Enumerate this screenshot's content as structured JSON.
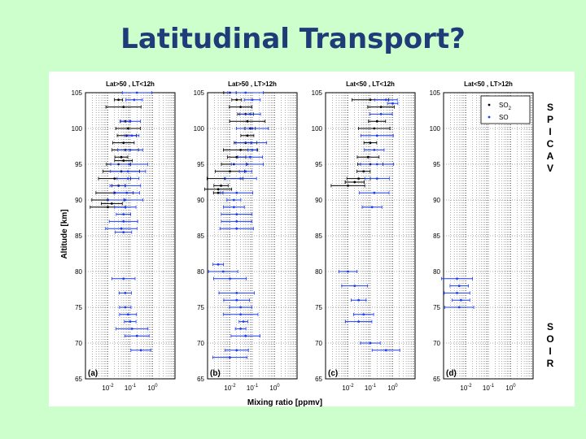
{
  "slide": {
    "title": "Latitudinal Transport?"
  },
  "figure": {
    "ylabel": "Altitude [km]",
    "xlabel": "Mixing ratio [ppmv]",
    "y_ticks": [
      "105",
      "100",
      "95",
      "90",
      "85",
      "80",
      "75",
      "70",
      "65"
    ],
    "x_ticks": [
      "10^-2",
      "10^-1",
      "10^0"
    ],
    "legend": {
      "so2": "SO",
      "so2_sub": "2",
      "so": "SO"
    },
    "instrument_spicav": [
      "S",
      "P",
      "I",
      "C",
      "A",
      "V"
    ],
    "instrument_soir": [
      "S",
      "O",
      "I",
      "R"
    ],
    "colors": {
      "so2": "#000000",
      "so": "#1a3cff",
      "grid": "#444444"
    }
  },
  "chart_data": [
    {
      "type": "scatter",
      "panel": "(a)",
      "title": "Lat>50 , LT<12h",
      "xlabel": "",
      "ylabel": "Altitude [km]",
      "xscale": "log",
      "xlim": [
        0.001,
        10
      ],
      "ylim": [
        65,
        105
      ],
      "series": [
        {
          "values": [
            [
              0.03,
              104
            ],
            [
              0.05,
              103
            ],
            [
              0.06,
              101
            ],
            [
              0.08,
              100
            ],
            [
              0.07,
              99
            ],
            [
              0.05,
              98
            ],
            [
              0.06,
              97
            ],
            [
              0.04,
              96
            ],
            [
              0.05,
              95.5
            ],
            [
              0.03,
              95
            ],
            [
              0.04,
              94
            ],
            [
              0.02,
              93
            ],
            [
              0.03,
              92
            ],
            [
              0.02,
              91
            ],
            [
              0.01,
              90
            ],
            [
              0.015,
              89.5
            ],
            [
              0.01,
              89
            ]
          ]
        },
        {
          "values": [
            [
              0.2,
              105
            ],
            [
              0.15,
              104
            ],
            [
              0.1,
              101
            ],
            [
              0.12,
              99
            ],
            [
              0.1,
              97
            ],
            [
              0.09,
              95
            ],
            [
              0.08,
              94
            ],
            [
              0.08,
              93
            ],
            [
              0.06,
              92
            ],
            [
              0.07,
              91
            ],
            [
              0.06,
              90
            ],
            [
              0.06,
              89
            ],
            [
              0.05,
              88
            ],
            [
              0.05,
              87
            ],
            [
              0.04,
              86
            ],
            [
              0.05,
              85.5
            ],
            [
              0.05,
              79
            ],
            [
              0.06,
              77
            ],
            [
              0.06,
              75
            ],
            [
              0.08,
              74
            ],
            [
              0.1,
              73
            ],
            [
              0.12,
              72
            ],
            [
              0.2,
              71
            ],
            [
              0.3,
              69
            ]
          ]
        }
      ]
    },
    {
      "type": "scatter",
      "panel": "(b)",
      "title": "Lat>50 , LT>12h",
      "xscale": "log",
      "xlim": [
        0.001,
        10
      ],
      "ylim": [
        65,
        105
      ],
      "series": [
        {
          "values": [
            [
              0.01,
              105
            ],
            [
              0.02,
              104
            ],
            [
              0.03,
              103
            ],
            [
              0.05,
              102
            ],
            [
              0.06,
              101
            ],
            [
              0.08,
              100
            ],
            [
              0.06,
              99
            ],
            [
              0.05,
              98
            ],
            [
              0.03,
              97
            ],
            [
              0.02,
              96
            ],
            [
              0.015,
              95
            ],
            [
              0.01,
              94
            ],
            [
              0.006,
              93
            ],
            [
              0.004,
              92
            ],
            [
              0.003,
              91.5
            ],
            [
              0.003,
              91
            ]
          ]
        },
        {
          "values": [
            [
              0.05,
              105
            ],
            [
              0.1,
              104
            ],
            [
              0.08,
              102
            ],
            [
              0.1,
              100
            ],
            [
              0.09,
              98
            ],
            [
              0.1,
              97
            ],
            [
              0.08,
              96
            ],
            [
              0.06,
              95
            ],
            [
              0.05,
              94
            ],
            [
              0.03,
              93
            ],
            [
              0.02,
              91
            ],
            [
              0.015,
              90
            ],
            [
              0.015,
              89
            ],
            [
              0.02,
              88
            ],
            [
              0.02,
              87
            ],
            [
              0.02,
              86
            ],
            [
              0.003,
              81
            ],
            [
              0.005,
              80
            ],
            [
              0.01,
              79
            ],
            [
              0.02,
              77
            ],
            [
              0.02,
              76
            ],
            [
              0.03,
              75
            ],
            [
              0.03,
              74
            ],
            [
              0.04,
              73
            ],
            [
              0.03,
              72
            ],
            [
              0.05,
              71
            ],
            [
              0.02,
              69
            ],
            [
              0.01,
              68
            ]
          ]
        }
      ]
    },
    {
      "type": "scatter",
      "panel": "(c)",
      "title": "Lat<50 , LT<12h",
      "xscale": "log",
      "xlim": [
        0.001,
        10
      ],
      "ylim": [
        65,
        105
      ],
      "series": [
        {
          "values": [
            [
              0.1,
              104
            ],
            [
              0.3,
              103
            ],
            [
              0.2,
              101
            ],
            [
              0.15,
              100
            ],
            [
              0.1,
              98
            ],
            [
              0.08,
              96
            ],
            [
              0.1,
              95
            ],
            [
              0.05,
              94
            ],
            [
              0.03,
              93
            ],
            [
              0.02,
              92.5
            ],
            [
              0.01,
              92
            ]
          ]
        },
        {
          "values": [
            [
              0.5,
              104
            ],
            [
              1,
              103.5
            ],
            [
              0.3,
              102
            ],
            [
              0.2,
              99
            ],
            [
              0.15,
              97
            ],
            [
              0.2,
              95
            ],
            [
              0.2,
              93
            ],
            [
              0.15,
              91
            ],
            [
              0.12,
              89
            ],
            [
              0.01,
              80
            ],
            [
              0.02,
              78
            ],
            [
              0.03,
              76
            ],
            [
              0.05,
              74
            ],
            [
              0.03,
              73
            ],
            [
              0.1,
              70
            ],
            [
              0.5,
              69
            ]
          ]
        }
      ]
    },
    {
      "type": "scatter",
      "panel": "(d)",
      "title": "Lat<50 , LT>12h",
      "xscale": "log",
      "xlim": [
        0.001,
        10
      ],
      "ylim": [
        65,
        105
      ],
      "series": [
        {
          "values": []
        },
        {
          "values": [
            [
              0.004,
              79
            ],
            [
              0.005,
              78
            ],
            [
              0.004,
              77
            ],
            [
              0.006,
              76
            ],
            [
              0.005,
              75
            ]
          ]
        }
      ]
    }
  ]
}
